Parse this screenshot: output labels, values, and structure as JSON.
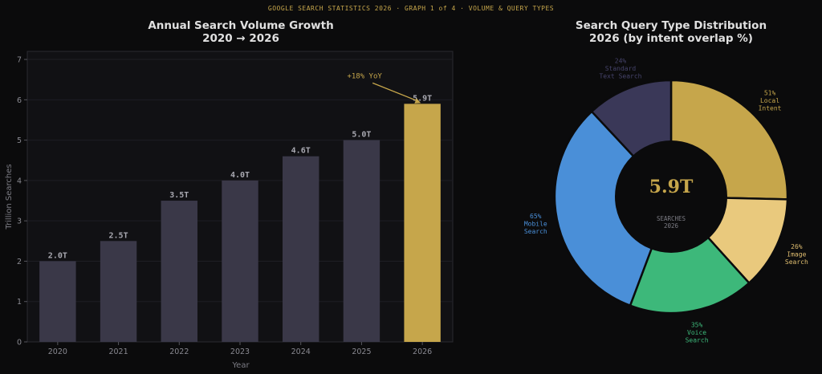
{
  "supertitle": "GOOGLE SEARCH STATISTICS 2026  ·  GRAPH 1 of 4  ·  VOLUME & QUERY TYPES",
  "chart_data": [
    {
      "type": "bar",
      "title_lines": [
        "Annual Search Volume Growth",
        "2020 → 2026"
      ],
      "xlabel": "Year",
      "ylabel": "Trillion Searches",
      "categories": [
        "2020",
        "2021",
        "2022",
        "2023",
        "2024",
        "2025",
        "2026"
      ],
      "values": [
        2.0,
        2.5,
        3.5,
        4.0,
        4.6,
        5.0,
        5.9
      ],
      "value_labels": [
        "2.0T",
        "2.5T",
        "3.5T",
        "4.0T",
        "4.6T",
        "5.0T",
        "5.9T"
      ],
      "ylim": [
        0,
        7.2
      ],
      "yticks": [
        0,
        1,
        2,
        3,
        4,
        5,
        6,
        7
      ],
      "grid": true,
      "highlight_index": 6,
      "colors": {
        "bar": "#3a3848",
        "highlight": "#c6a64b",
        "plot_bg": "#111114",
        "grid": "#1e1e24"
      },
      "annotation": {
        "text": "+18% YoY",
        "points_to_index": 6
      }
    },
    {
      "type": "pie",
      "subtype": "donut",
      "title_lines": [
        "Search Query Type Distribution",
        "2026 (by intent overlap %)"
      ],
      "slices": [
        {
          "label_lines": [
            "51%",
            "Local",
            "Intent"
          ],
          "value": 51,
          "color": "#c6a64b",
          "text_color": "#c6a64b"
        },
        {
          "label_lines": [
            "26%",
            "Image",
            "Search"
          ],
          "value": 26,
          "color": "#e9c97d",
          "text_color": "#e0be70"
        },
        {
          "label_lines": [
            "35%",
            "Voice",
            "Search"
          ],
          "value": 35,
          "color": "#3db87a",
          "text_color": "#3db87a"
        },
        {
          "label_lines": [
            "65%",
            "Mobile",
            "Search"
          ],
          "value": 65,
          "color": "#4a8fd8",
          "text_color": "#4a8fd8"
        },
        {
          "label_lines": [
            "24%",
            "Standard",
            "Text Search"
          ],
          "value": 24,
          "color": "#3a3858",
          "text_color": "#45436a"
        }
      ],
      "center_value": "5.9T",
      "center_label_lines": [
        "SEARCHES",
        "2026"
      ]
    }
  ]
}
